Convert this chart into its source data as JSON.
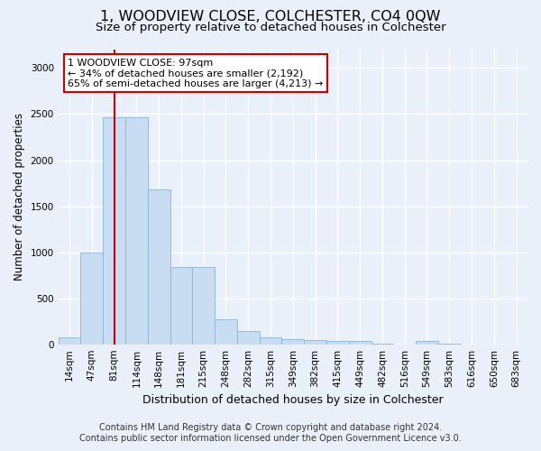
{
  "title": "1, WOODVIEW CLOSE, COLCHESTER, CO4 0QW",
  "subtitle": "Size of property relative to detached houses in Colchester",
  "xlabel": "Distribution of detached houses by size in Colchester",
  "ylabel": "Number of detached properties",
  "categories": [
    "14sqm",
    "47sqm",
    "81sqm",
    "114sqm",
    "148sqm",
    "181sqm",
    "215sqm",
    "248sqm",
    "282sqm",
    "315sqm",
    "349sqm",
    "382sqm",
    "415sqm",
    "449sqm",
    "482sqm",
    "516sqm",
    "549sqm",
    "583sqm",
    "616sqm",
    "650sqm",
    "683sqm"
  ],
  "values": [
    75,
    1000,
    2470,
    2470,
    1680,
    840,
    840,
    270,
    140,
    75,
    55,
    45,
    40,
    35,
    5,
    0,
    40,
    5,
    0,
    0,
    0
  ],
  "bar_color": "#c9ddf2",
  "bar_edge_color": "#8ab4d8",
  "property_line_x": 2,
  "annotation_text": "1 WOODVIEW CLOSE: 97sqm\n← 34% of detached houses are smaller (2,192)\n65% of semi-detached houses are larger (4,213) →",
  "annotation_box_color": "#ffffff",
  "annotation_box_edge": "#cc0000",
  "footer_line1": "Contains HM Land Registry data © Crown copyright and database right 2024.",
  "footer_line2": "Contains public sector information licensed under the Open Government Licence v3.0.",
  "ylim": [
    0,
    3200
  ],
  "yticks": [
    0,
    500,
    1000,
    1500,
    2000,
    2500,
    3000
  ],
  "bg_color": "#eaf0f9",
  "plot_bg_color": "#eaf0f9",
  "grid_color": "#ffffff",
  "title_fontsize": 11.5,
  "subtitle_fontsize": 9.5,
  "xlabel_fontsize": 9,
  "ylabel_fontsize": 8.5,
  "tick_fontsize": 7.5,
  "footer_fontsize": 7,
  "annot_fontsize": 8
}
